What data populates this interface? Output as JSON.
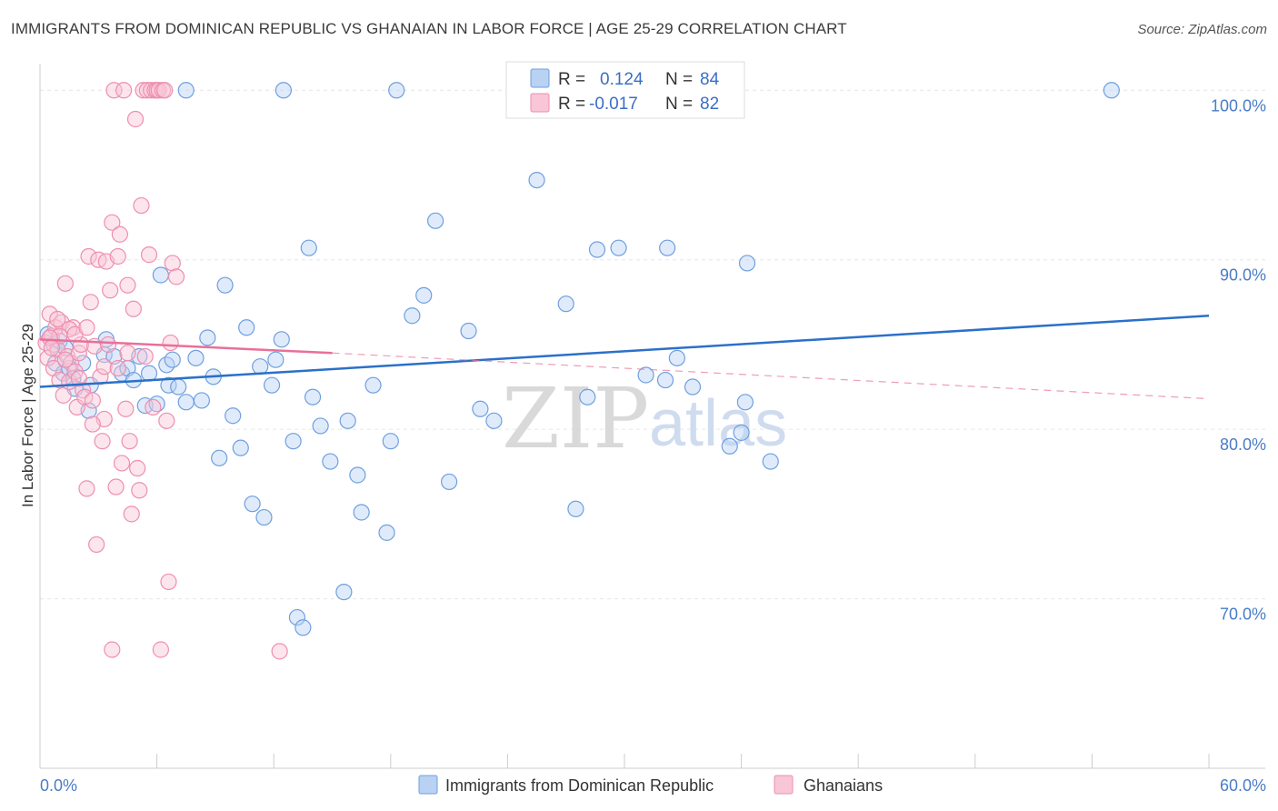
{
  "header": {
    "title": "IMMIGRANTS FROM DOMINICAN REPUBLIC VS GHANAIAN IN LABOR FORCE | AGE 25-29 CORRELATION CHART",
    "source": "Source: ZipAtlas.com"
  },
  "watermark": {
    "zip": "ZIP",
    "atlas": "atlas"
  },
  "legend": {
    "r_label": "R =",
    "n_label": "N =",
    "series": [
      {
        "r": "0.124",
        "n": "84",
        "color": "#a9c6ee"
      },
      {
        "r": "-0.017",
        "n": "82",
        "color": "#f5b8cb"
      }
    ]
  },
  "bottom_legend": [
    "Immigrants from Dominican Republic",
    "Ghanaians"
  ],
  "chart_data": {
    "type": "scatter",
    "ylabel": "In Labor Force | Age 25-29",
    "xlim": [
      0,
      60
    ],
    "ylim": [
      60,
      102
    ],
    "x_tick_labels": [
      "0.0%",
      "60.0%"
    ],
    "y_ticks": [
      {
        "value": 100,
        "label": "100.0%"
      },
      {
        "value": 90,
        "label": "90.0%"
      },
      {
        "value": 80,
        "label": "80.0%"
      },
      {
        "value": 70,
        "label": "70.0%"
      }
    ],
    "colors": {
      "blue_stroke": "#6f9fe0",
      "blue_fill": "#b9d2f3",
      "blue_line": "#2b70c9",
      "pink_stroke": "#ee8fae",
      "pink_fill": "#f8c6d6",
      "pink_line": "#e8709a",
      "grid": "#e6e6e6"
    },
    "series": [
      {
        "name": "Immigrants from Dominican Republic",
        "trend": {
          "x0": 0,
          "y0": 82.5,
          "x1": 60,
          "y1": 86.7
        },
        "points": [
          [
            0.4,
            85.6
          ],
          [
            0.7,
            85.0
          ],
          [
            0.8,
            83.9
          ],
          [
            1.0,
            85.2
          ],
          [
            1.2,
            83.3
          ],
          [
            1.3,
            84.8
          ],
          [
            1.5,
            83.6
          ],
          [
            1.7,
            83.0
          ],
          [
            1.8,
            82.4
          ],
          [
            2.2,
            83.9
          ],
          [
            2.5,
            81.1
          ],
          [
            2.6,
            82.6
          ],
          [
            3.3,
            84.4
          ],
          [
            3.4,
            85.3
          ],
          [
            3.8,
            84.3
          ],
          [
            4.2,
            83.3
          ],
          [
            4.5,
            83.6
          ],
          [
            4.8,
            82.9
          ],
          [
            5.1,
            84.3
          ],
          [
            5.4,
            81.4
          ],
          [
            5.6,
            83.3
          ],
          [
            6.0,
            81.5
          ],
          [
            6.2,
            89.1
          ],
          [
            6.5,
            83.8
          ],
          [
            6.6,
            82.6
          ],
          [
            6.8,
            84.1
          ],
          [
            7.1,
            82.5
          ],
          [
            7.5,
            81.6
          ],
          [
            8.0,
            84.2
          ],
          [
            8.3,
            81.7
          ],
          [
            8.6,
            85.4
          ],
          [
            8.9,
            83.1
          ],
          [
            9.2,
            78.3
          ],
          [
            9.5,
            88.5
          ],
          [
            9.9,
            80.8
          ],
          [
            10.3,
            78.9
          ],
          [
            10.6,
            86.0
          ],
          [
            10.9,
            75.6
          ],
          [
            11.3,
            83.7
          ],
          [
            11.5,
            74.8
          ],
          [
            11.9,
            82.6
          ],
          [
            12.1,
            84.1
          ],
          [
            12.4,
            85.3
          ],
          [
            12.5,
            100.0
          ],
          [
            13.0,
            79.3
          ],
          [
            13.2,
            68.9
          ],
          [
            13.5,
            68.3
          ],
          [
            13.8,
            90.7
          ],
          [
            14.0,
            81.9
          ],
          [
            14.4,
            80.2
          ],
          [
            14.9,
            78.1
          ],
          [
            15.6,
            70.4
          ],
          [
            15.8,
            80.5
          ],
          [
            16.3,
            77.3
          ],
          [
            16.5,
            75.1
          ],
          [
            17.1,
            82.6
          ],
          [
            17.8,
            73.9
          ],
          [
            18.0,
            79.3
          ],
          [
            18.3,
            100.0
          ],
          [
            19.1,
            86.7
          ],
          [
            19.7,
            87.9
          ],
          [
            20.3,
            92.3
          ],
          [
            21.0,
            76.9
          ],
          [
            22.0,
            85.8
          ],
          [
            22.6,
            81.2
          ],
          [
            23.3,
            80.5
          ],
          [
            25.5,
            94.7
          ],
          [
            27.0,
            87.4
          ],
          [
            27.5,
            75.3
          ],
          [
            28.1,
            81.9
          ],
          [
            28.6,
            90.6
          ],
          [
            29.7,
            90.7
          ],
          [
            31.1,
            83.2
          ],
          [
            32.1,
            82.9
          ],
          [
            32.2,
            90.7
          ],
          [
            32.7,
            84.2
          ],
          [
            33.5,
            82.5
          ],
          [
            35.4,
            79.0
          ],
          [
            36.0,
            79.8
          ],
          [
            36.2,
            81.6
          ],
          [
            36.3,
            89.8
          ],
          [
            37.5,
            78.1
          ],
          [
            55.0,
            100.0
          ],
          [
            7.5,
            100.0
          ]
        ]
      },
      {
        "name": "Ghanaians",
        "trend_solid": {
          "x0": 0,
          "y0": 85.3,
          "x1": 15,
          "y1": 84.5
        },
        "trend_dashed": {
          "x0": 15,
          "y0": 84.5,
          "x1": 60,
          "y1": 81.8
        },
        "points": [
          [
            0.3,
            85.1
          ],
          [
            0.4,
            84.2
          ],
          [
            0.5,
            86.8
          ],
          [
            0.6,
            85.5
          ],
          [
            0.7,
            83.6
          ],
          [
            0.8,
            86.0
          ],
          [
            0.9,
            84.7
          ],
          [
            1.0,
            82.9
          ],
          [
            1.1,
            86.3
          ],
          [
            1.2,
            82.0
          ],
          [
            1.3,
            88.6
          ],
          [
            1.4,
            84.3
          ],
          [
            1.5,
            82.8
          ],
          [
            1.6,
            83.9
          ],
          [
            1.7,
            86.0
          ],
          [
            1.8,
            83.4
          ],
          [
            1.9,
            81.3
          ],
          [
            2.0,
            84.5
          ],
          [
            2.1,
            85.0
          ],
          [
            2.2,
            82.3
          ],
          [
            2.3,
            81.9
          ],
          [
            2.4,
            76.5
          ],
          [
            2.5,
            90.2
          ],
          [
            2.6,
            87.5
          ],
          [
            2.7,
            81.7
          ],
          [
            2.8,
            84.9
          ],
          [
            2.9,
            73.2
          ],
          [
            3.0,
            90.0
          ],
          [
            3.1,
            83.1
          ],
          [
            3.2,
            79.3
          ],
          [
            3.3,
            80.6
          ],
          [
            3.4,
            89.9
          ],
          [
            3.5,
            85.0
          ],
          [
            3.6,
            88.2
          ],
          [
            3.7,
            92.2
          ],
          [
            3.8,
            100.0
          ],
          [
            3.9,
            76.6
          ],
          [
            4.0,
            90.2
          ],
          [
            4.1,
            91.5
          ],
          [
            4.2,
            78.0
          ],
          [
            4.3,
            100.0
          ],
          [
            4.4,
            81.2
          ],
          [
            4.5,
            88.5
          ],
          [
            4.6,
            79.3
          ],
          [
            4.7,
            75.0
          ],
          [
            4.8,
            87.1
          ],
          [
            4.9,
            98.3
          ],
          [
            5.0,
            77.7
          ],
          [
            5.1,
            76.4
          ],
          [
            5.2,
            93.2
          ],
          [
            5.3,
            100.0
          ],
          [
            5.4,
            84.3
          ],
          [
            5.5,
            100.0
          ],
          [
            5.6,
            90.3
          ],
          [
            5.7,
            100.0
          ],
          [
            5.8,
            81.3
          ],
          [
            5.9,
            100.0
          ],
          [
            6.0,
            100.0
          ],
          [
            6.1,
            100.0
          ],
          [
            6.2,
            67.0
          ],
          [
            6.3,
            100.0
          ],
          [
            6.4,
            100.0
          ],
          [
            6.5,
            80.5
          ],
          [
            6.6,
            71.0
          ],
          [
            6.7,
            85.1
          ],
          [
            6.8,
            89.8
          ],
          [
            7.0,
            89.0
          ],
          [
            4.5,
            84.5
          ],
          [
            3.7,
            67.0
          ],
          [
            12.3,
            66.9
          ],
          [
            2.0,
            83.0
          ],
          [
            1.5,
            85.9
          ],
          [
            0.9,
            86.5
          ],
          [
            1.3,
            84.1
          ],
          [
            3.3,
            83.7
          ],
          [
            2.7,
            80.3
          ],
          [
            1.0,
            85.5
          ],
          [
            0.5,
            85.4
          ],
          [
            1.8,
            85.6
          ],
          [
            2.4,
            86.0
          ],
          [
            0.6,
            84.8
          ],
          [
            4.0,
            83.6
          ]
        ]
      }
    ]
  }
}
